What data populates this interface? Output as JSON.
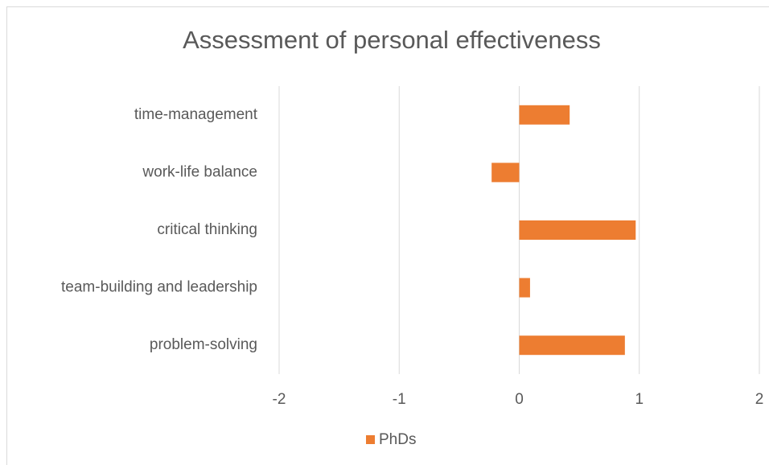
{
  "chart_data": {
    "type": "bar",
    "orientation": "horizontal",
    "title": "Assessment of personal effectiveness",
    "categories": [
      "time-management",
      "work-life balance",
      "critical thinking",
      "team-building and leadership",
      "problem-solving"
    ],
    "series": [
      {
        "name": "PhDs",
        "color": "#ed7d31",
        "values": [
          0.42,
          -0.23,
          0.97,
          0.09,
          0.88
        ]
      }
    ],
    "xlim": [
      -2,
      2
    ],
    "xticks": [
      -2,
      -1,
      0,
      1,
      2
    ],
    "grid": true,
    "legend": "bottom"
  }
}
